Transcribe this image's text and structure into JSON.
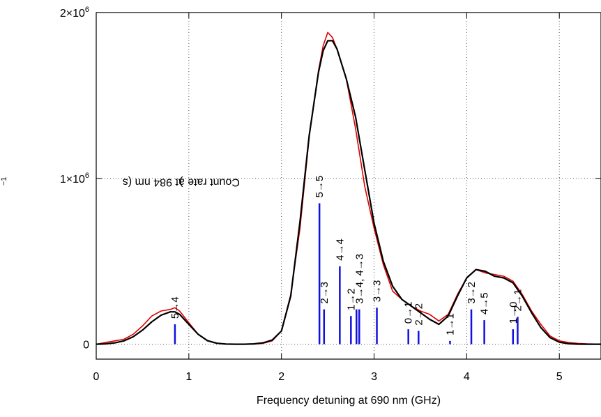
{
  "chart_data": {
    "type": "line",
    "xlabel": "Frequency detuning at 690 nm (GHz)",
    "ylabel_main": "Count rate at 984 nm (s",
    "ylabel_sup": "−1",
    "ylabel_end": ")",
    "xlim": [
      0,
      5.45
    ],
    "ylim": [
      -90000,
      2000000
    ],
    "xticks": [
      0,
      1,
      2,
      3,
      4,
      5
    ],
    "xtick_labels": [
      "0",
      "1",
      "2",
      "3",
      "4",
      "5"
    ],
    "yticks": [
      0,
      1000000,
      2000000
    ],
    "ytick_labels": [
      {
        "main": "0",
        "exp": ""
      },
      {
        "main": "1×10",
        "exp": "6"
      },
      {
        "main": "2×10",
        "exp": "6"
      }
    ],
    "grid": true,
    "series": [
      {
        "color": "#e00000",
        "kind": "measured",
        "x": [
          0.0,
          0.1,
          0.2,
          0.3,
          0.4,
          0.5,
          0.6,
          0.7,
          0.8,
          0.85,
          0.9,
          1.0,
          1.1,
          1.2,
          1.3,
          1.4,
          1.5,
          1.6,
          1.7,
          1.8,
          1.9,
          2.0,
          2.1,
          2.2,
          2.3,
          2.4,
          2.45,
          2.5,
          2.55,
          2.6,
          2.7,
          2.8,
          2.9,
          3.0,
          3.1,
          3.2,
          3.3,
          3.4,
          3.5,
          3.6,
          3.7,
          3.8,
          3.9,
          4.0,
          4.1,
          4.2,
          4.3,
          4.4,
          4.5,
          4.6,
          4.7,
          4.8,
          4.9,
          5.0,
          5.1,
          5.2,
          5.3,
          5.45
        ],
        "y": [
          0,
          10000,
          20000,
          30000,
          60000,
          110000,
          170000,
          200000,
          210000,
          220000,
          200000,
          130000,
          60000,
          20000,
          5000,
          0,
          0,
          0,
          0,
          5000,
          20000,
          80000,
          300000,
          700000,
          1250000,
          1650000,
          1800000,
          1880000,
          1850000,
          1780000,
          1600000,
          1300000,
          950000,
          700000,
          480000,
          320000,
          270000,
          230000,
          200000,
          180000,
          140000,
          180000,
          300000,
          400000,
          450000,
          430000,
          420000,
          410000,
          380000,
          300000,
          200000,
          120000,
          50000,
          20000,
          10000,
          5000,
          2000,
          0
        ]
      },
      {
        "color": "#000000",
        "kind": "fit",
        "x": [
          0.0,
          0.1,
          0.2,
          0.3,
          0.4,
          0.5,
          0.6,
          0.7,
          0.8,
          0.85,
          0.9,
          1.0,
          1.1,
          1.2,
          1.3,
          1.4,
          1.5,
          1.6,
          1.7,
          1.8,
          1.9,
          2.0,
          2.1,
          2.2,
          2.3,
          2.4,
          2.45,
          2.5,
          2.55,
          2.6,
          2.7,
          2.8,
          2.9,
          3.0,
          3.1,
          3.2,
          3.3,
          3.4,
          3.5,
          3.6,
          3.7,
          3.8,
          3.9,
          4.0,
          4.1,
          4.2,
          4.3,
          4.4,
          4.5,
          4.6,
          4.7,
          4.8,
          4.9,
          5.0,
          5.1,
          5.2,
          5.3,
          5.45
        ],
        "y": [
          0,
          2000,
          8000,
          20000,
          45000,
          85000,
          135000,
          175000,
          195000,
          195000,
          180000,
          120000,
          60000,
          22000,
          6000,
          1000,
          0,
          0,
          2000,
          8000,
          25000,
          80000,
          290000,
          740000,
          1260000,
          1640000,
          1770000,
          1830000,
          1830000,
          1780000,
          1600000,
          1370000,
          1050000,
          730000,
          500000,
          350000,
          270000,
          230000,
          190000,
          150000,
          120000,
          170000,
          290000,
          400000,
          450000,
          440000,
          410000,
          400000,
          370000,
          290000,
          190000,
          100000,
          40000,
          12000,
          3000,
          500,
          0,
          0
        ]
      }
    ],
    "transitions": [
      {
        "x": 0.85,
        "y": 120000,
        "label": "5→4"
      },
      {
        "x": 2.41,
        "y": 850000,
        "label": "5→5"
      },
      {
        "x": 2.46,
        "y": 210000,
        "label": "2→3"
      },
      {
        "x": 2.63,
        "y": 470000,
        "label": "4→4"
      },
      {
        "x": 2.75,
        "y": 170000,
        "label": "1→2"
      },
      {
        "x": 2.81,
        "y": 210000,
        "label": ""
      },
      {
        "x": 2.84,
        "y": 210000,
        "label": "3→4, 4→3"
      },
      {
        "x": 3.03,
        "y": 220000,
        "label": "3→3"
      },
      {
        "x": 3.37,
        "y": 90000,
        "label": "0→1"
      },
      {
        "x": 3.48,
        "y": 80000,
        "label": "2→2"
      },
      {
        "x": 3.82,
        "y": 20000,
        "label": "1→1"
      },
      {
        "x": 4.05,
        "y": 210000,
        "label": "3→2"
      },
      {
        "x": 4.19,
        "y": 145000,
        "label": "4→5"
      },
      {
        "x": 4.5,
        "y": 90000,
        "label": "1→0"
      },
      {
        "x": 4.55,
        "y": 165000,
        "label": "2→1"
      }
    ]
  }
}
